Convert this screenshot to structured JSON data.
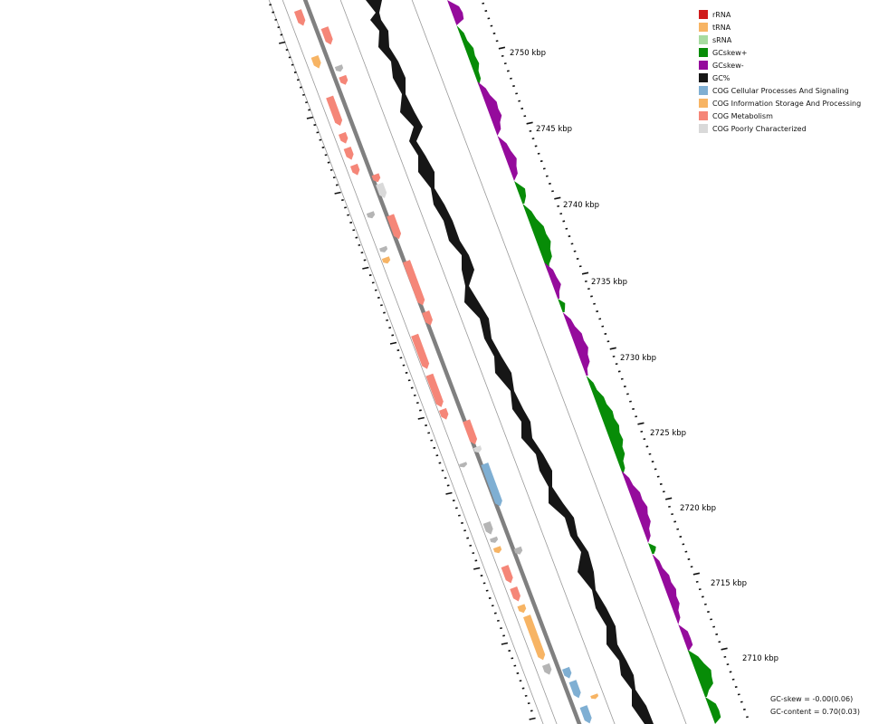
{
  "legend": {
    "items": [
      {
        "label": "rRNA",
        "color": "#d01c1c"
      },
      {
        "label": "tRNA",
        "color": "#f7b464"
      },
      {
        "label": "sRNA",
        "color": "#a7dba0"
      },
      {
        "label": "GCskew+",
        "color": "#078c07"
      },
      {
        "label": "GCskew-",
        "color": "#950b9c"
      },
      {
        "label": "GC%",
        "color": "#161616"
      },
      {
        "label": "COG Cellular Processes And Signaling",
        "color": "#7fafd3"
      },
      {
        "label": "COG Information Storage And Processing",
        "color": "#f7b464"
      },
      {
        "label": "COG Metabolism",
        "color": "#f58678"
      },
      {
        "label": "COG Poorly Characterized",
        "color": "#d9d9d9"
      }
    ]
  },
  "ruler": {
    "labels": [
      {
        "kbp": 2750,
        "text": "2750 kbp"
      },
      {
        "kbp": 2745,
        "text": "2745 kbp"
      },
      {
        "kbp": 2740,
        "text": "2740 kbp"
      },
      {
        "kbp": 2735,
        "text": "2735 kbp"
      },
      {
        "kbp": 2730,
        "text": "2730 kbp"
      },
      {
        "kbp": 2725,
        "text": "2725 kbp"
      },
      {
        "kbp": 2720,
        "text": "2720 kbp"
      },
      {
        "kbp": 2715,
        "text": "2715 kbp"
      },
      {
        "kbp": 2710,
        "text": "2710 kbp"
      }
    ]
  },
  "stats": {
    "gc_skew": "GC-skew = -0.00(0.06)",
    "gc_content": "GC-content = 0.70(0.03)"
  }
}
